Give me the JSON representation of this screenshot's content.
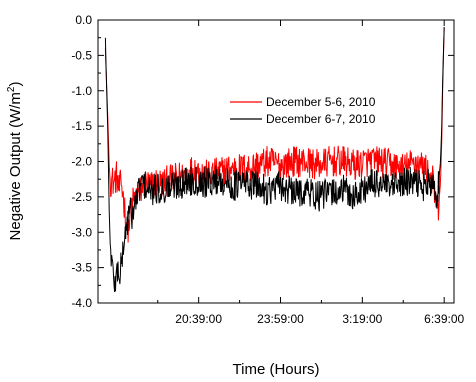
{
  "chart_data": {
    "type": "line",
    "xlabel": "Time (Hours)",
    "ylabel_main": "Negative Output (W/m",
    "ylabel_sup": "2",
    "ylabel_close": ")",
    "ylim": [
      -4.0,
      0.0
    ],
    "yticks": [
      "0.0",
      "-0.5",
      "-1.0",
      "-1.5",
      "-2.0",
      "-2.5",
      "-3.0",
      "-3.5",
      "-4.0"
    ],
    "xlim_hours": [
      16.55,
      31.05
    ],
    "xticks": [
      {
        "label": "20:39:00",
        "hour": 20.65
      },
      {
        "label": "23:59:00",
        "hour": 23.9833
      },
      {
        "label": "3:19:00",
        "hour": 27.3167
      },
      {
        "label": "6:39:00",
        "hour": 30.65
      }
    ],
    "legend_position": "upper-right",
    "grid": false,
    "series": [
      {
        "name": "December 5-6, 2010",
        "color": "#ff0000",
        "x": [
          16.85,
          16.95,
          17.0,
          17.05,
          17.1,
          17.2,
          17.3,
          17.4,
          17.5,
          17.6,
          17.7,
          17.8,
          17.9,
          18.1,
          18.3,
          18.5,
          18.7,
          18.9,
          19.2,
          19.6,
          20.0,
          20.5,
          21.0,
          21.5,
          22.0,
          22.5,
          23.0,
          23.5,
          24.0,
          24.5,
          25.0,
          25.5,
          26.0,
          26.5,
          27.0,
          27.5,
          28.0,
          28.5,
          29.0,
          29.5,
          29.9,
          30.1,
          30.2,
          30.3,
          30.4,
          30.5,
          30.55,
          30.6,
          30.65
        ],
        "y": [
          -0.4,
          -1.4,
          -2.0,
          -2.3,
          -2.25,
          -2.3,
          -2.2,
          -2.4,
          -2.3,
          -2.55,
          -2.85,
          -2.95,
          -2.6,
          -2.5,
          -2.4,
          -2.3,
          -2.35,
          -2.3,
          -2.3,
          -2.25,
          -2.2,
          -2.1,
          -2.2,
          -2.15,
          -2.1,
          -2.1,
          -2.05,
          -2.0,
          -2.05,
          -2.0,
          -2.0,
          -2.05,
          -2.0,
          -2.0,
          -2.05,
          -2.0,
          -2.0,
          -2.05,
          -2.1,
          -2.0,
          -2.1,
          -2.2,
          -2.3,
          -2.6,
          -2.75,
          -2.3,
          -1.7,
          -0.8,
          -0.1
        ]
      },
      {
        "name": "December 6-7, 2010",
        "color": "#000000",
        "x": [
          16.85,
          16.95,
          17.0,
          17.05,
          17.15,
          17.25,
          17.35,
          17.45,
          17.55,
          17.65,
          17.75,
          17.85,
          17.95,
          18.1,
          18.3,
          18.5,
          18.7,
          18.9,
          19.2,
          19.6,
          20.0,
          20.5,
          21.0,
          21.5,
          22.0,
          22.5,
          23.0,
          23.5,
          24.0,
          24.5,
          25.0,
          25.5,
          26.0,
          26.5,
          27.0,
          27.5,
          28.0,
          28.5,
          29.0,
          29.5,
          29.9,
          30.1,
          30.2,
          30.3,
          30.4,
          30.5,
          30.55,
          30.6,
          30.65
        ],
        "y": [
          -0.25,
          -1.6,
          -2.6,
          -3.2,
          -3.55,
          -3.75,
          -3.5,
          -3.6,
          -3.3,
          -3.05,
          -2.85,
          -2.7,
          -2.75,
          -2.55,
          -2.3,
          -2.35,
          -2.45,
          -2.4,
          -2.4,
          -2.35,
          -2.3,
          -2.25,
          -2.3,
          -2.25,
          -2.35,
          -2.3,
          -2.35,
          -2.4,
          -2.35,
          -2.45,
          -2.4,
          -2.5,
          -2.45,
          -2.4,
          -2.5,
          -2.35,
          -2.3,
          -2.4,
          -2.3,
          -2.3,
          -2.35,
          -2.3,
          -2.4,
          -2.5,
          -2.4,
          -2.0,
          -1.5,
          -0.7,
          -0.1
        ]
      }
    ]
  }
}
